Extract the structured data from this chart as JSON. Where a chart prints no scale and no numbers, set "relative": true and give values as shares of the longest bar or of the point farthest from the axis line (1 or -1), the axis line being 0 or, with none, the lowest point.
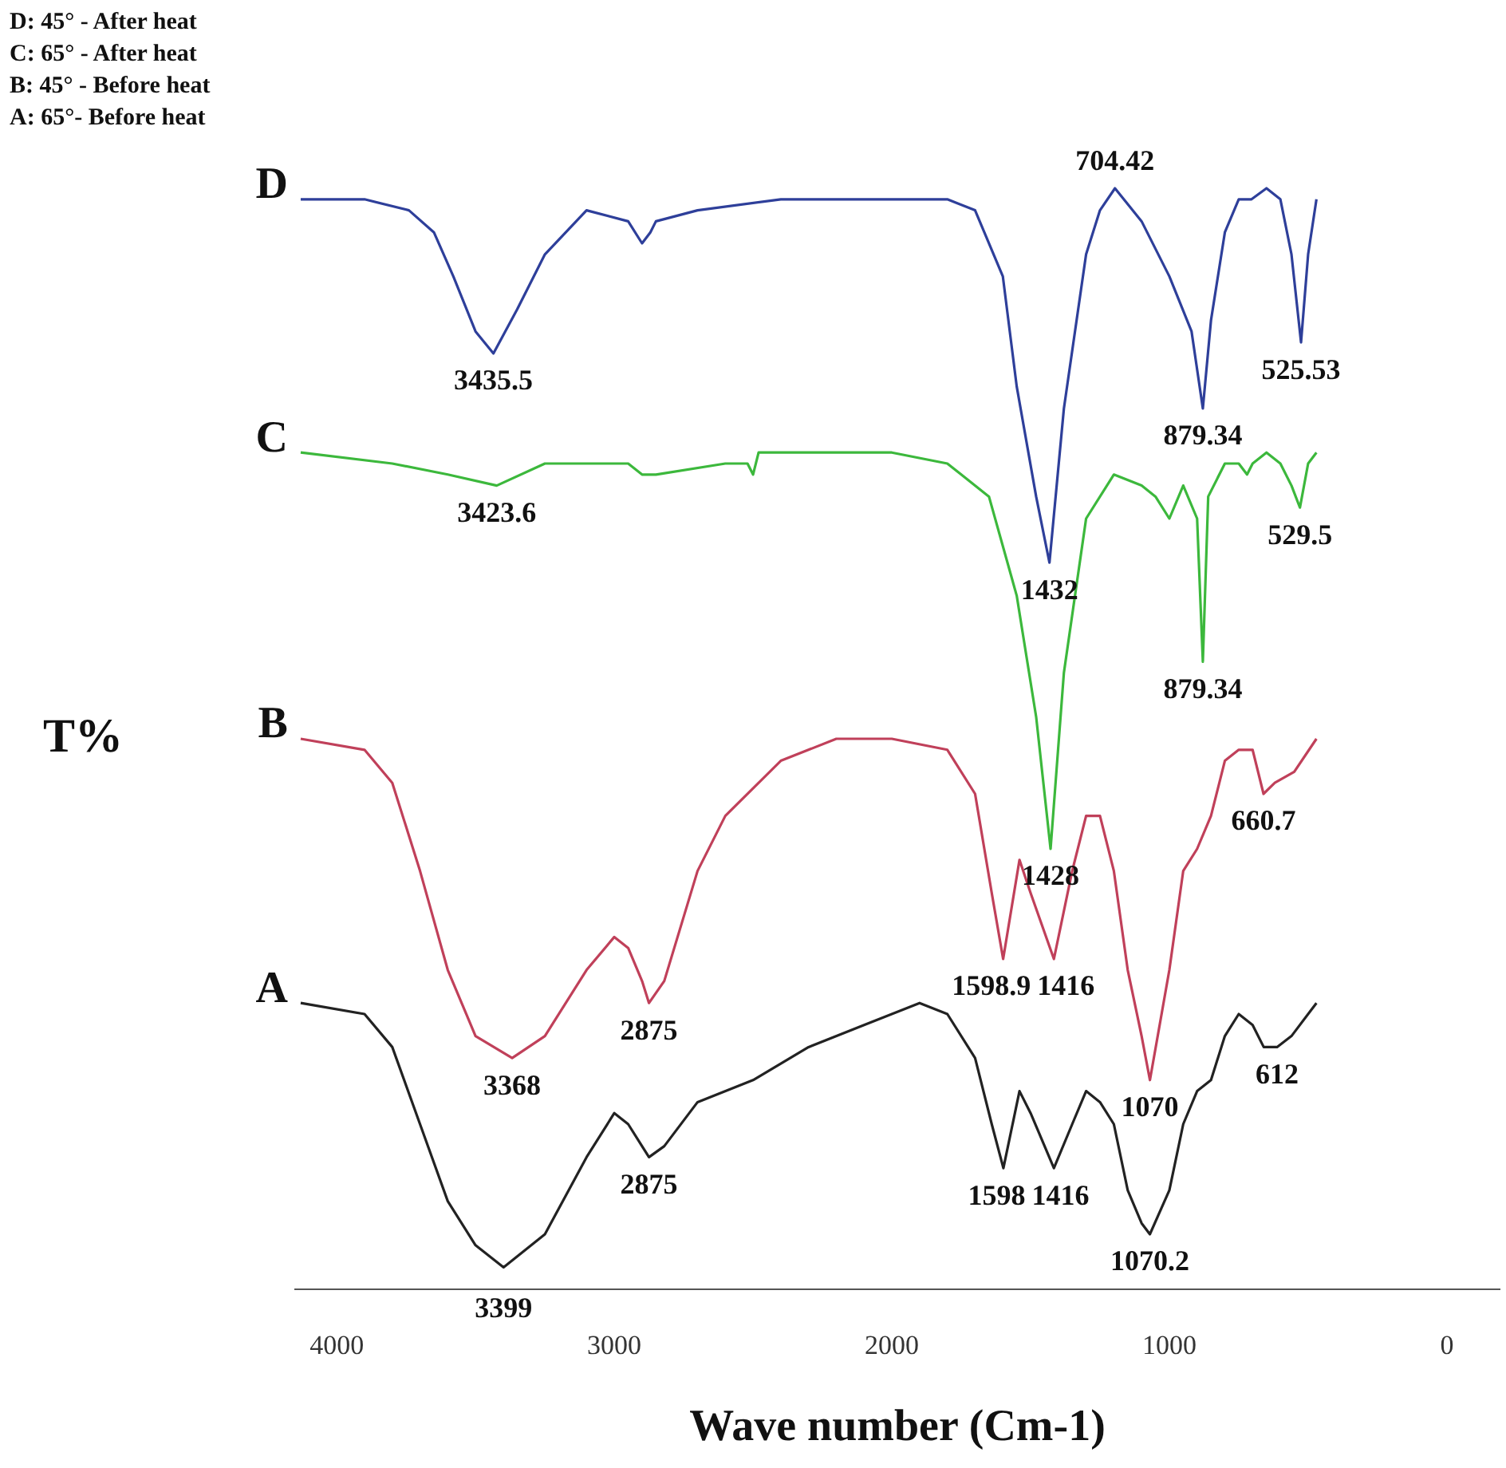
{
  "chart_data": {
    "type": "line",
    "relative": true,
    "xlabel": "Wave number (Cm-1)",
    "ylabel": "T%",
    "xlim": [
      4150,
      -190
    ],
    "xticks": [
      4000,
      3000,
      2000,
      1000,
      0
    ],
    "grid": false,
    "legend": false,
    "marker": "none",
    "line_style": "solid",
    "annotations": [
      "D: 45° - After heat",
      "C: 65° - After heat",
      "B: 45° - Before heat",
      "A: 65°- Before heat",
      {
        "text": "3435.5",
        "x": 3435.5,
        "y": 0.85
      },
      {
        "text": "704.42",
        "x": 1196,
        "y": 1.0
      },
      {
        "text": "1432",
        "x": 1432,
        "y": 0.66
      },
      {
        "text": "879.34",
        "x": 879.34,
        "y": 0.8
      },
      {
        "text": "525.53",
        "x": 525.53,
        "y": 0.86
      },
      {
        "text": "3423.6",
        "x": 3423.6,
        "y": 0.73
      },
      {
        "text": "1428",
        "x": 1428,
        "y": 0.4
      },
      {
        "text": "879.34",
        "x": 879.34,
        "y": 0.57
      },
      {
        "text": "529.5",
        "x": 529.5,
        "y": 0.71
      },
      {
        "text": "3368",
        "x": 3368,
        "y": 0.21
      },
      {
        "text": "2875",
        "x": 2875,
        "y": 0.26
      },
      {
        "text": "1598.9",
        "x": 1598.9,
        "y": 0.3
      },
      {
        "text": "1416",
        "x": 1416,
        "y": 0.3
      },
      {
        "text": "1070",
        "x": 1070,
        "y": 0.19
      },
      {
        "text": "660.7",
        "x": 660.7,
        "y": 0.45
      },
      {
        "text": "3399",
        "x": 3399,
        "y": 0.02
      },
      {
        "text": "2875",
        "x": 2875,
        "y": 0.12
      },
      {
        "text": "1598",
        "x": 1598,
        "y": 0.11
      },
      {
        "text": "1416",
        "x": 1416,
        "y": 0.11
      },
      {
        "text": "1070.2",
        "x": 1070.2,
        "y": 0.05
      },
      {
        "text": "612",
        "x": 612,
        "y": 0.22
      }
    ],
    "series": [
      {
        "name": "D",
        "color": "#2e3f9a",
        "x": [
          4130,
          3900,
          3740,
          3650,
          3580,
          3500,
          3435.5,
          3350,
          3250,
          3100,
          2950,
          2900,
          2870,
          2850,
          2700,
          2400,
          2200,
          2000,
          1800,
          1700,
          1600,
          1550,
          1480,
          1432,
          1380,
          1300,
          1250,
          1196,
          1100,
          1000,
          920,
          879.34,
          850,
          800,
          750,
          704,
          650,
          600,
          560,
          525.53,
          500,
          470
        ],
        "values": [
          0.99,
          0.99,
          0.98,
          0.96,
          0.92,
          0.87,
          0.85,
          0.89,
          0.94,
          0.98,
          0.97,
          0.95,
          0.96,
          0.97,
          0.98,
          0.99,
          0.99,
          0.99,
          0.99,
          0.98,
          0.92,
          0.82,
          0.72,
          0.66,
          0.8,
          0.94,
          0.98,
          1.0,
          0.97,
          0.92,
          0.87,
          0.8,
          0.88,
          0.96,
          0.99,
          0.99,
          1.0,
          0.99,
          0.94,
          0.86,
          0.94,
          0.99
        ]
      },
      {
        "name": "C",
        "color": "#3cb83c",
        "x": [
          4130,
          3800,
          3600,
          3423.6,
          3250,
          2950,
          2900,
          2850,
          2600,
          2520,
          2500,
          2480,
          2200,
          2000,
          1800,
          1750,
          1650,
          1550,
          1480,
          1428,
          1380,
          1300,
          1200,
          1100,
          1050,
          1000,
          950,
          900,
          879.34,
          860,
          800,
          750,
          720,
          700,
          650,
          600,
          560,
          529.5,
          500,
          470
        ],
        "values": [
          0.76,
          0.75,
          0.74,
          0.73,
          0.75,
          0.75,
          0.74,
          0.74,
          0.75,
          0.75,
          0.74,
          0.76,
          0.76,
          0.76,
          0.75,
          0.74,
          0.72,
          0.63,
          0.52,
          0.4,
          0.56,
          0.7,
          0.74,
          0.73,
          0.72,
          0.7,
          0.73,
          0.7,
          0.57,
          0.72,
          0.75,
          0.75,
          0.74,
          0.75,
          0.76,
          0.75,
          0.73,
          0.71,
          0.75,
          0.76
        ]
      },
      {
        "name": "B",
        "color": "#c0405a",
        "x": [
          4130,
          3900,
          3800,
          3700,
          3600,
          3500,
          3368,
          3250,
          3100,
          3000,
          2950,
          2900,
          2875,
          2820,
          2700,
          2600,
          2400,
          2200,
          2000,
          1800,
          1700,
          1640,
          1598.9,
          1540,
          1500,
          1416,
          1350,
          1300,
          1250,
          1200,
          1150,
          1100,
          1070,
          1000,
          950,
          900,
          850,
          800,
          750,
          700,
          660.7,
          620,
          550,
          470
        ],
        "values": [
          0.5,
          0.49,
          0.46,
          0.38,
          0.29,
          0.23,
          0.21,
          0.23,
          0.29,
          0.32,
          0.31,
          0.28,
          0.26,
          0.28,
          0.38,
          0.43,
          0.48,
          0.5,
          0.5,
          0.49,
          0.45,
          0.36,
          0.3,
          0.39,
          0.36,
          0.3,
          0.38,
          0.43,
          0.43,
          0.38,
          0.29,
          0.23,
          0.19,
          0.29,
          0.38,
          0.4,
          0.43,
          0.48,
          0.49,
          0.49,
          0.45,
          0.46,
          0.47,
          0.5
        ]
      },
      {
        "name": "A",
        "color": "#222222",
        "x": [
          4130,
          3900,
          3800,
          3700,
          3600,
          3500,
          3399,
          3250,
          3100,
          3000,
          2950,
          2900,
          2875,
          2820,
          2700,
          2500,
          2300,
          2100,
          1900,
          1800,
          1700,
          1640,
          1598,
          1540,
          1500,
          1416,
          1350,
          1300,
          1250,
          1200,
          1150,
          1100,
          1070.2,
          1000,
          950,
          900,
          850,
          800,
          750,
          700,
          660,
          612,
          560,
          470
        ],
        "values": [
          0.26,
          0.25,
          0.22,
          0.15,
          0.08,
          0.04,
          0.02,
          0.05,
          0.12,
          0.16,
          0.15,
          0.13,
          0.12,
          0.13,
          0.17,
          0.19,
          0.22,
          0.24,
          0.26,
          0.25,
          0.21,
          0.15,
          0.11,
          0.18,
          0.16,
          0.11,
          0.15,
          0.18,
          0.17,
          0.15,
          0.09,
          0.06,
          0.05,
          0.09,
          0.15,
          0.18,
          0.19,
          0.23,
          0.25,
          0.24,
          0.22,
          0.22,
          0.23,
          0.26
        ]
      }
    ]
  }
}
